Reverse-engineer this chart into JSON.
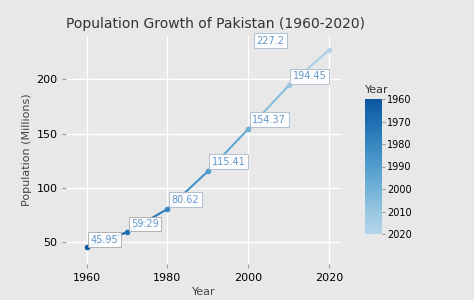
{
  "title": "Population Growth of Pakistan (1960-2020)",
  "xlabel": "Year",
  "ylabel": "Population (Millions)",
  "years": [
    1960,
    1970,
    1980,
    1990,
    2000,
    2010,
    2020
  ],
  "populations": [
    45.95,
    59.29,
    80.62,
    115.41,
    154.37,
    194.45,
    227.2
  ],
  "year_min": 1960,
  "year_max": 2020,
  "ylim_min": 30,
  "ylim_max": 240,
  "xlim_min": 1955,
  "xlim_max": 2023,
  "background_color": "#E8E8E8",
  "plot_bg_color": "#E8E8E8",
  "grid_color": "#FFFFFF",
  "cmap_name": "Blues",
  "label_text_color": "#6699CC",
  "label_edge_color": "#AABBCC",
  "label_early_edge_color": "#AAAAAA",
  "colorbar_label": "Year",
  "colorbar_ticks": [
    1960,
    1970,
    1980,
    1990,
    2000,
    2010,
    2020
  ],
  "xticks": [
    1960,
    1980,
    2000,
    2020
  ],
  "yticks": [
    50,
    100,
    150,
    200
  ],
  "title_fontsize": 10,
  "axis_label_fontsize": 8,
  "tick_fontsize": 8,
  "annot_fontsize": 7,
  "cbar_fontsize": 7,
  "line_width": 1.5
}
